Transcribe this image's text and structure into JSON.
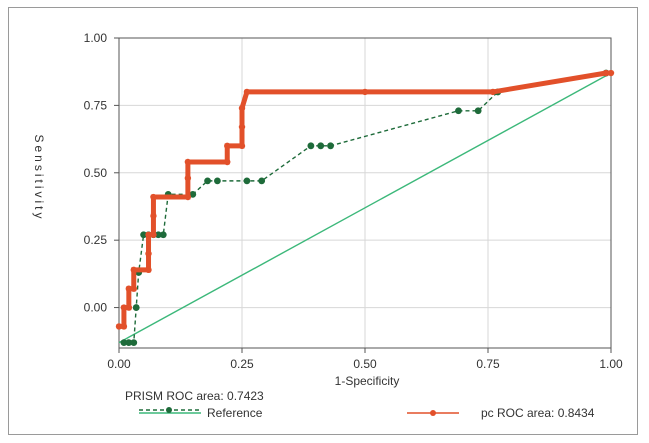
{
  "chart_data": {
    "type": "line",
    "title": "",
    "xlabel": "1-Specificity",
    "ylabel": "Sensitivity",
    "xlim": [
      0,
      1
    ],
    "ylim": [
      -0.15,
      1.0
    ],
    "x_ticks": [
      "0.00",
      "0.25",
      "0.50",
      "0.75",
      "1.00"
    ],
    "y_ticks": [
      "1.00",
      "0.75",
      "0.50",
      "0.25",
      "0.00"
    ],
    "grid": true,
    "legend": {
      "prism_label": "PRISM ROC area: 0.7423",
      "reference_label": "Reference",
      "pc_label": "pc ROC area: 0.8434"
    },
    "colors": {
      "prism": "#1e6b3a",
      "pc": "#e2502a",
      "reference": "#3cb87a",
      "grid": "#d7d7d7"
    },
    "series": [
      {
        "key": "prism",
        "points": [
          [
            0.01,
            -0.13
          ],
          [
            0.02,
            -0.13
          ],
          [
            0.03,
            -0.13
          ],
          [
            0.035,
            0.0
          ],
          [
            0.04,
            0.13
          ],
          [
            0.05,
            0.27
          ],
          [
            0.06,
            0.27
          ],
          [
            0.07,
            0.27
          ],
          [
            0.08,
            0.27
          ],
          [
            0.09,
            0.27
          ],
          [
            0.1,
            0.42
          ],
          [
            0.15,
            0.42
          ],
          [
            0.18,
            0.47
          ],
          [
            0.2,
            0.47
          ],
          [
            0.26,
            0.47
          ],
          [
            0.29,
            0.47
          ],
          [
            0.39,
            0.6
          ],
          [
            0.41,
            0.6
          ],
          [
            0.43,
            0.6
          ],
          [
            0.69,
            0.73
          ],
          [
            0.73,
            0.73
          ],
          [
            0.77,
            0.8
          ],
          [
            0.99,
            0.87
          ]
        ]
      },
      {
        "key": "pc",
        "points": [
          [
            0.0,
            -0.07
          ],
          [
            0.01,
            -0.07
          ],
          [
            0.01,
            0.0
          ],
          [
            0.02,
            0.0
          ],
          [
            0.02,
            0.07
          ],
          [
            0.03,
            0.07
          ],
          [
            0.03,
            0.14
          ],
          [
            0.06,
            0.14
          ],
          [
            0.06,
            0.2
          ],
          [
            0.06,
            0.27
          ],
          [
            0.07,
            0.27
          ],
          [
            0.07,
            0.34
          ],
          [
            0.07,
            0.41
          ],
          [
            0.14,
            0.41
          ],
          [
            0.14,
            0.48
          ],
          [
            0.14,
            0.54
          ],
          [
            0.22,
            0.54
          ],
          [
            0.22,
            0.6
          ],
          [
            0.25,
            0.6
          ],
          [
            0.25,
            0.67
          ],
          [
            0.25,
            0.74
          ],
          [
            0.26,
            0.8
          ],
          [
            0.5,
            0.8
          ],
          [
            0.76,
            0.8
          ],
          [
            0.99,
            0.87
          ],
          [
            1.0,
            0.87
          ]
        ]
      }
    ],
    "reference_line": [
      [
        0.0,
        -0.13
      ],
      [
        1.0,
        0.87
      ]
    ]
  }
}
